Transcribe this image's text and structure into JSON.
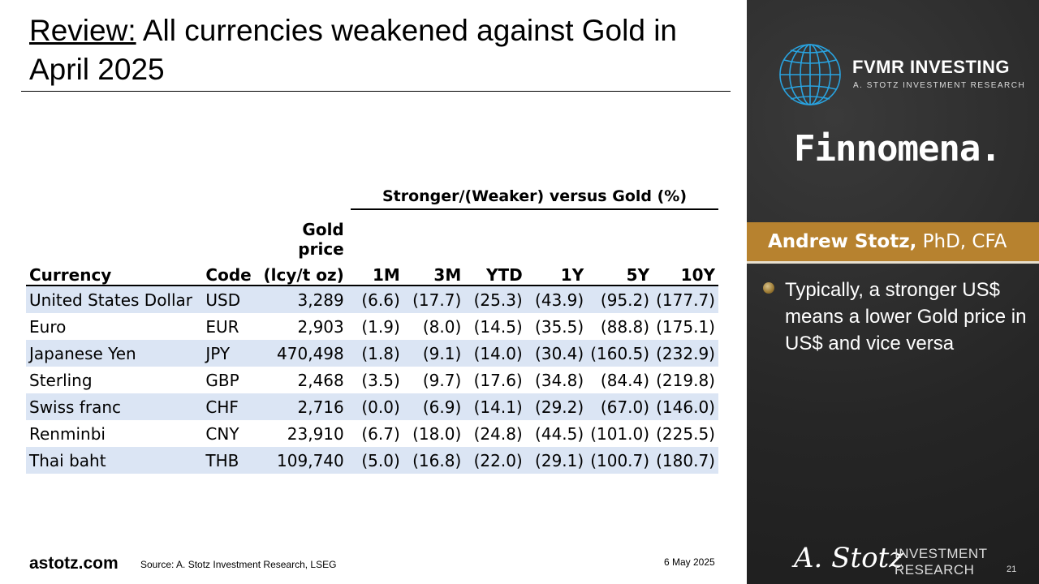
{
  "title": {
    "prefix": "Review:",
    "rest": " All currencies weakened against Gold in April 2025"
  },
  "table": {
    "group_header": "Stronger/(Weaker) versus Gold (%)",
    "gold_price_header_1": "Gold price",
    "headers": [
      "Currency",
      "Code",
      "(lcy/t oz)",
      "1M",
      "3M",
      "YTD",
      "1Y",
      "5Y",
      "10Y"
    ],
    "rows": [
      [
        "United States Dollar",
        "USD",
        "3,289",
        "(6.6)",
        "(17.7)",
        "(25.3)",
        "(43.9)",
        "(95.2)",
        "(177.7)"
      ],
      [
        "Euro",
        "EUR",
        "2,903",
        "(1.9)",
        "(8.0)",
        "(14.5)",
        "(35.5)",
        "(88.8)",
        "(175.1)"
      ],
      [
        "Japanese Yen",
        "JPY",
        "470,498",
        "(1.8)",
        "(9.1)",
        "(14.0)",
        "(30.4)",
        "(160.5)",
        "(232.9)"
      ],
      [
        "Sterling",
        "GBP",
        "2,468",
        "(3.5)",
        "(9.7)",
        "(17.6)",
        "(34.8)",
        "(84.4)",
        "(219.8)"
      ],
      [
        "Swiss franc",
        "CHF",
        "2,716",
        "(0.0)",
        "(6.9)",
        "(14.1)",
        "(29.2)",
        "(67.0)",
        "(146.0)"
      ],
      [
        "Renminbi",
        "CNY",
        "23,910",
        "(6.7)",
        "(18.0)",
        "(24.8)",
        "(44.5)",
        "(101.0)",
        "(225.5)"
      ],
      [
        "Thai baht",
        "THB",
        "109,740",
        "(5.0)",
        "(16.8)",
        "(22.0)",
        "(29.1)",
        "(100.7)",
        "(180.7)"
      ]
    ]
  },
  "footer": {
    "site": "astotz.com",
    "source": "Source: A. Stotz Investment Research, LSEG",
    "date": "6 May 2025"
  },
  "sidebar": {
    "brand_title": "FVMR INVESTING",
    "brand_sub": "A. STOTZ INVESTMENT RESEARCH",
    "partner": "Finnomena.",
    "presenter_name": "Andrew Stotz,",
    "presenter_creds": " PhD, CFA",
    "bullet": "Typically, a stronger US$ means a lower Gold price in US$ and vice versa",
    "signature": "A. Stotz",
    "invest_line1": "INVESTMENT",
    "invest_line2": "RESEARCH",
    "page_number": "21"
  },
  "colors": {
    "row_band": "#dbe5f4",
    "sidebar_bg": "#2b2b2b",
    "name_band": "#b7822f",
    "globe_blue": "#29a3e0"
  }
}
